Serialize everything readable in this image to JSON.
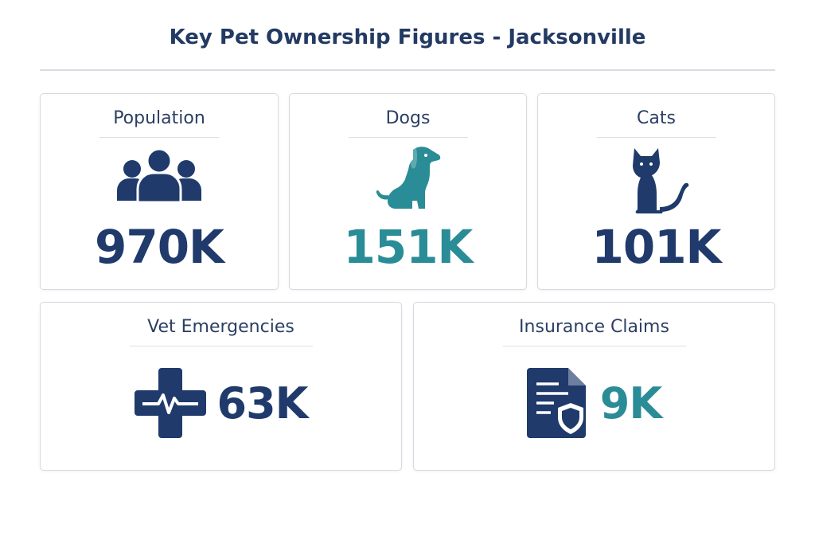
{
  "header": {
    "title": "Key Pet Ownership Figures - Jacksonville"
  },
  "cards": [
    {
      "label": "Population",
      "value": "970K",
      "color": "#1f3a6b"
    },
    {
      "label": "Dogs",
      "value": "151K",
      "color": "#2a8c96"
    },
    {
      "label": "Cats",
      "value": "101K",
      "color": "#1f3a6b"
    },
    {
      "label": "Vet Emergencies",
      "value": "63K",
      "color": "#1f3a6b"
    },
    {
      "label": "Insurance Claims",
      "value": "9K",
      "color": "#2a8c96"
    }
  ]
}
